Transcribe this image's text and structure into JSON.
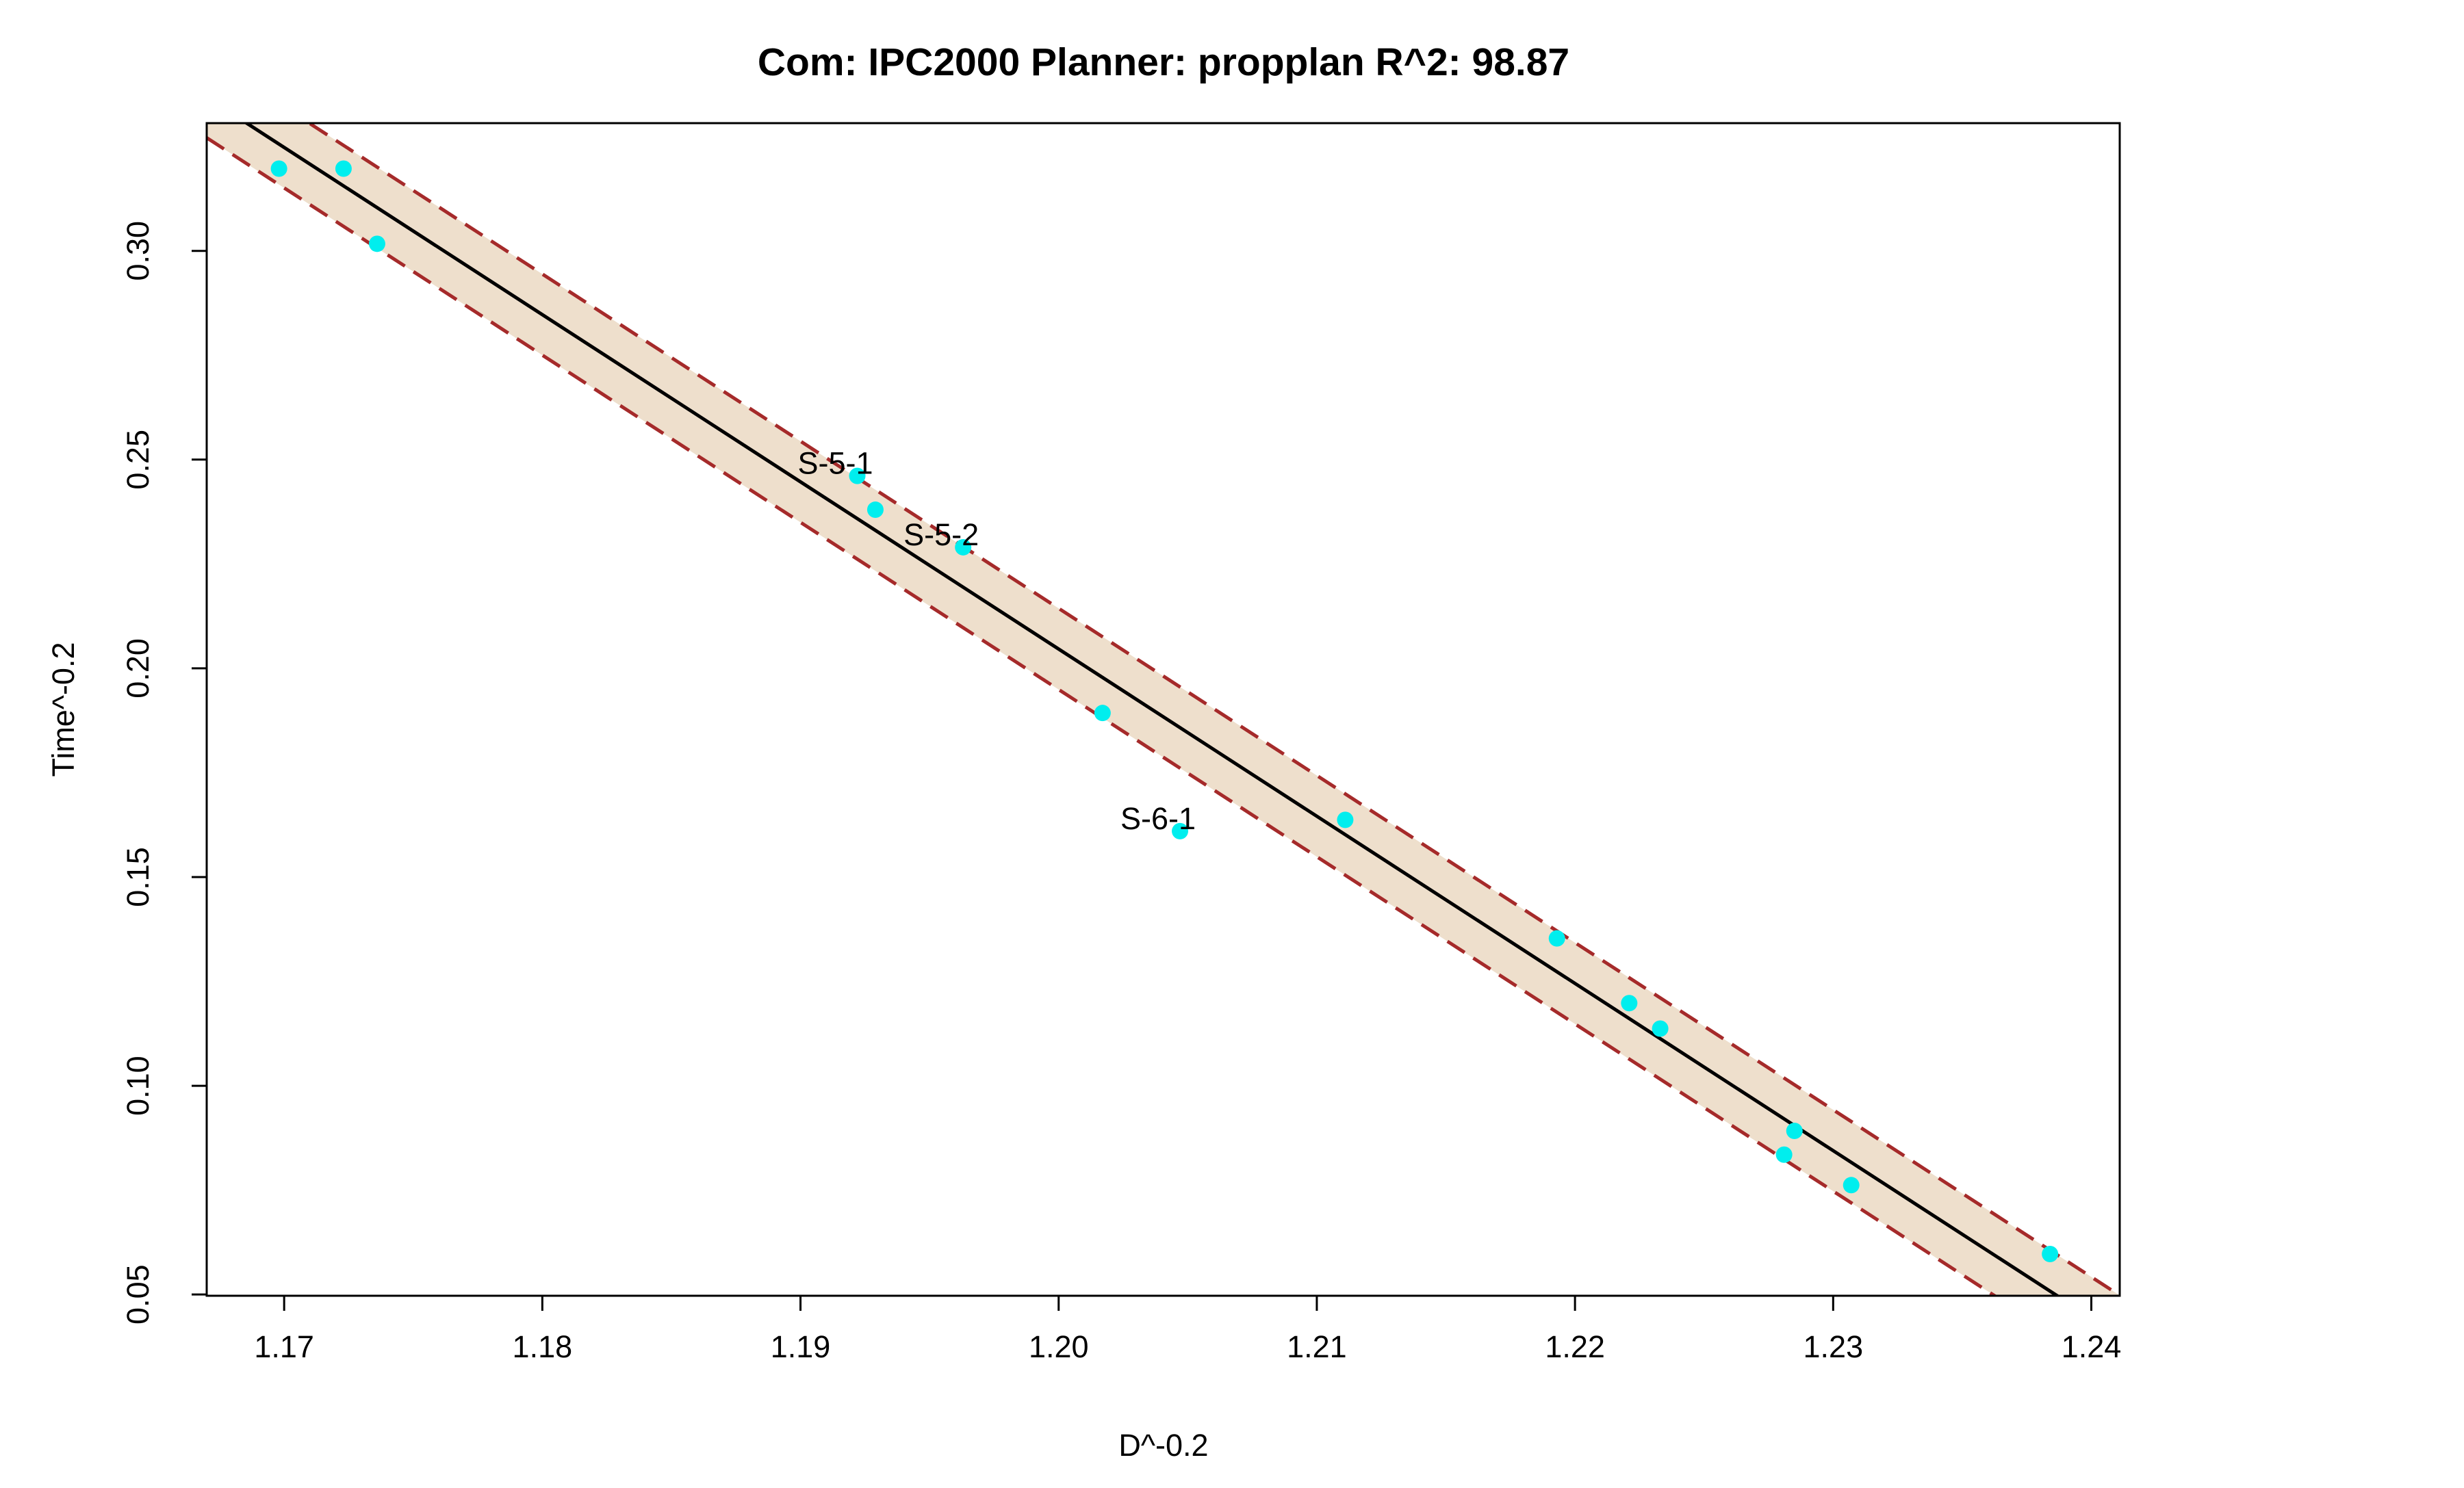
{
  "chart_data": {
    "type": "scatter",
    "title": "Com: IPC2000 Planner: propplan R^2: 98.87",
    "xlabel": "D^-0.2",
    "ylabel": "Time^-0.2",
    "xlim": [
      1.167,
      1.2411
    ],
    "ylim": [
      0.0497,
      0.3306
    ],
    "x_ticks": [
      1.17,
      1.18,
      1.19,
      1.2,
      1.21,
      1.22,
      1.23,
      1.24
    ],
    "x_tick_labels": [
      "1.17",
      "1.18",
      "1.19",
      "1.20",
      "1.21",
      "1.22",
      "1.23",
      "1.24"
    ],
    "y_ticks": [
      0.05,
      0.1,
      0.15,
      0.2,
      0.25,
      0.3
    ],
    "y_tick_labels": [
      "0.05",
      "0.10",
      "0.15",
      "0.20",
      "0.25",
      "0.30"
    ],
    "grid": false,
    "colors": {
      "points": "#00eeee",
      "fit_line": "#000000",
      "band_fill": "#eedfcc",
      "band_border": "#a52a2a",
      "frame": "#000000"
    },
    "fit_line": {
      "x": [
        1.167,
        1.2411
      ],
      "y": [
        0.3368,
        0.04
      ]
    },
    "band_upper": {
      "x": [
        1.167,
        1.2411
      ],
      "y": [
        0.3465,
        0.0498
      ]
    },
    "band_lower": {
      "x": [
        1.167,
        1.2411
      ],
      "y": [
        0.3271,
        0.0303
      ]
    },
    "points": [
      {
        "x": 1.1698,
        "y": 0.3197
      },
      {
        "x": 1.1723,
        "y": 0.3197
      },
      {
        "x": 1.1736,
        "y": 0.3017
      },
      {
        "x": 1.1922,
        "y": 0.2461
      },
      {
        "x": 1.1929,
        "y": 0.238
      },
      {
        "x": 1.1963,
        "y": 0.229
      },
      {
        "x": 1.2017,
        "y": 0.1893
      },
      {
        "x": 1.2047,
        "y": 0.161
      },
      {
        "x": 1.2111,
        "y": 0.1637
      },
      {
        "x": 1.2193,
        "y": 0.1353
      },
      {
        "x": 1.2221,
        "y": 0.1198
      },
      {
        "x": 1.2233,
        "y": 0.1137
      },
      {
        "x": 1.2285,
        "y": 0.0892
      },
      {
        "x": 1.2281,
        "y": 0.0835
      },
      {
        "x": 1.2307,
        "y": 0.0762
      },
      {
        "x": 1.2384,
        "y": 0.0597
      }
    ],
    "annotations": [
      {
        "text": "S-5-1",
        "x": 1.1922,
        "y": 0.2461
      },
      {
        "text": "S-5-2",
        "x": 1.1963,
        "y": 0.229
      },
      {
        "text": "S-6-1",
        "x": 1.2047,
        "y": 0.161
      }
    ]
  }
}
